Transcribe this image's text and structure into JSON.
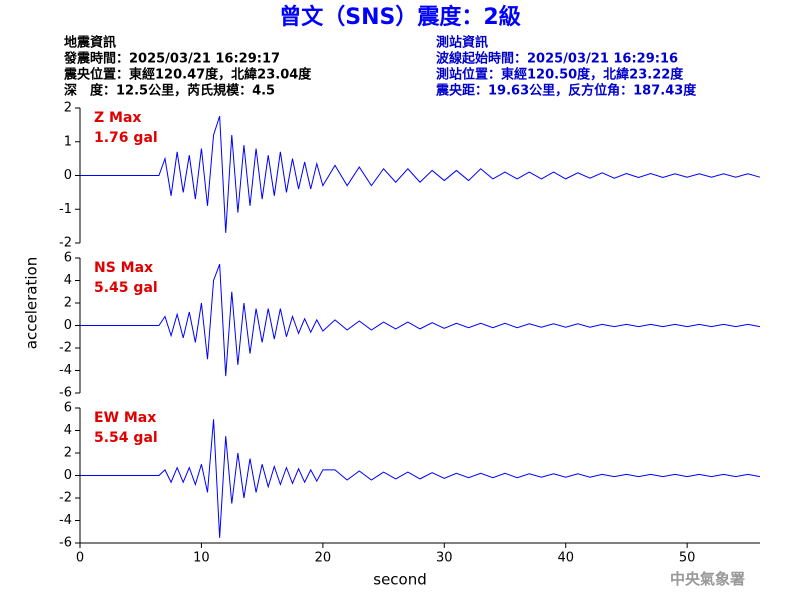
{
  "header": {
    "title": "曾文（SNS）震度：2級",
    "left": [
      "地震資訊",
      "發震時間：2025/03/21 16:29:17",
      "震央位置：東經120.47度，北緯23.04度",
      "深　度：12.5公里，芮氏規模：4.5"
    ],
    "right": [
      "測站資訊",
      "波線起始時間：2025/03/21 16:29:16",
      "測站位置：東經120.50度，北緯23.22度",
      "震央距：19.63公里，反方位角：187.43度"
    ],
    "xlabel": "second",
    "ylabel": "acceleration",
    "footer": "中央氣象署"
  },
  "chart_data": [
    {
      "type": "line",
      "annotation": "Z Max",
      "max_label": "1.76 gal",
      "xlim": [
        0,
        56
      ],
      "ylim": [
        -2,
        2
      ],
      "yticks": [
        -2,
        -1,
        0,
        1,
        2
      ],
      "x": [
        0,
        6,
        6.5,
        7,
        7.5,
        8,
        8.5,
        9,
        9.5,
        10,
        10.5,
        11,
        11.5,
        12,
        12.5,
        13,
        13.5,
        14,
        14.5,
        15,
        15.5,
        16,
        16.5,
        17,
        17.5,
        18,
        18.5,
        19,
        19.5,
        20,
        21,
        22,
        23,
        24,
        25,
        26,
        27,
        28,
        29,
        30,
        31,
        32,
        33,
        34,
        35,
        36,
        37,
        38,
        39,
        40,
        41,
        42,
        43,
        44,
        45,
        46,
        47,
        48,
        49,
        50,
        51,
        52,
        53,
        54,
        55,
        56
      ],
      "series": [
        {
          "color": "#0000ff",
          "values": [
            0,
            0,
            0,
            0.5,
            -0.6,
            0.7,
            -0.5,
            0.6,
            -0.7,
            0.8,
            -0.9,
            1.2,
            1.76,
            -1.7,
            1.2,
            -1.1,
            0.9,
            -0.9,
            0.8,
            -0.7,
            0.6,
            -0.6,
            0.7,
            -0.5,
            0.5,
            -0.4,
            0.4,
            -0.4,
            0.35,
            -0.3,
            0.3,
            -0.3,
            0.25,
            -0.3,
            0.2,
            -0.2,
            0.2,
            -0.2,
            0.15,
            -0.15,
            0.15,
            -0.15,
            0.2,
            -0.1,
            0.1,
            -0.1,
            0.1,
            -0.1,
            0.1,
            -0.1,
            0.08,
            -0.08,
            0.08,
            -0.08,
            0.06,
            -0.06,
            0.06,
            -0.06,
            0.05,
            -0.05,
            0.05,
            -0.05,
            0.05,
            -0.05,
            0.05,
            -0.05
          ]
        }
      ]
    },
    {
      "type": "line",
      "annotation": "NS Max",
      "max_label": "5.45 gal",
      "xlim": [
        0,
        56
      ],
      "ylim": [
        -6,
        6
      ],
      "yticks": [
        -6,
        -4,
        -2,
        0,
        2,
        4,
        6
      ],
      "x": [
        0,
        6,
        6.5,
        7,
        7.5,
        8,
        8.5,
        9,
        9.5,
        10,
        10.5,
        11,
        11.5,
        12,
        12.5,
        13,
        13.5,
        14,
        14.5,
        15,
        15.5,
        16,
        16.5,
        17,
        17.5,
        18,
        18.5,
        19,
        19.5,
        20,
        21,
        22,
        23,
        24,
        25,
        26,
        27,
        28,
        29,
        30,
        31,
        32,
        33,
        34,
        35,
        36,
        37,
        38,
        39,
        40,
        41,
        42,
        43,
        44,
        45,
        46,
        47,
        48,
        49,
        50,
        51,
        52,
        53,
        54,
        55,
        56
      ],
      "series": [
        {
          "color": "#0000ff",
          "values": [
            0,
            0,
            0,
            0.8,
            -0.9,
            1,
            -1.1,
            1.2,
            -1.5,
            2,
            -3,
            4,
            5.45,
            -4.5,
            3,
            -3.5,
            2,
            -2.5,
            1.5,
            -1.5,
            1.5,
            -1.2,
            1.5,
            -1,
            0.8,
            -0.7,
            0.6,
            -0.6,
            0.5,
            -0.5,
            0.5,
            -0.4,
            0.4,
            -0.4,
            0.3,
            -0.3,
            0.3,
            -0.3,
            0.25,
            -0.25,
            0.2,
            -0.2,
            0.2,
            -0.2,
            0.2,
            -0.2,
            0.15,
            -0.15,
            0.15,
            -0.15,
            0.15,
            -0.15,
            0.1,
            -0.1,
            0.1,
            -0.1,
            0.1,
            -0.1,
            0.1,
            -0.1,
            0.1,
            -0.1,
            0.1,
            -0.1,
            0.1,
            -0.1
          ]
        }
      ]
    },
    {
      "type": "line",
      "annotation": "EW Max",
      "max_label": "5.54 gal",
      "xlim": [
        0,
        56
      ],
      "ylim": [
        -6,
        6
      ],
      "yticks": [
        -6,
        -4,
        -2,
        0,
        2,
        4,
        6
      ],
      "xticks": [
        0,
        10,
        20,
        30,
        40,
        50
      ],
      "x": [
        0,
        6,
        6.5,
        7,
        7.5,
        8,
        8.5,
        9,
        9.5,
        10,
        10.5,
        11,
        11.5,
        12,
        12.5,
        13,
        13.5,
        14,
        14.5,
        15,
        15.5,
        16,
        16.5,
        17,
        17.5,
        18,
        18.5,
        19,
        19.5,
        20,
        21,
        22,
        23,
        24,
        25,
        26,
        27,
        28,
        29,
        30,
        31,
        32,
        33,
        34,
        35,
        36,
        37,
        38,
        39,
        40,
        41,
        42,
        43,
        44,
        45,
        46,
        47,
        48,
        49,
        50,
        51,
        52,
        53,
        54,
        55,
        56
      ],
      "series": [
        {
          "color": "#0000ff",
          "values": [
            0,
            0,
            0,
            0.5,
            -0.6,
            0.7,
            -0.6,
            0.7,
            -0.8,
            1,
            -1.5,
            5,
            -5.54,
            3.5,
            -2.5,
            2,
            -2,
            1.5,
            -1.5,
            1,
            -1,
            0.8,
            -0.8,
            0.7,
            -0.7,
            0.6,
            -0.6,
            0.5,
            -0.5,
            0.5,
            0.5,
            -0.4,
            0.4,
            -0.4,
            0.3,
            -0.3,
            0.3,
            -0.3,
            0.25,
            -0.25,
            0.2,
            -0.2,
            0.2,
            -0.2,
            0.2,
            -0.2,
            0.15,
            -0.15,
            0.15,
            -0.15,
            0.15,
            -0.15,
            0.1,
            -0.1,
            0.1,
            -0.1,
            0.1,
            -0.1,
            0.1,
            -0.1,
            0.1,
            -0.1,
            0.1,
            -0.1,
            0.1,
            -0.1
          ]
        }
      ]
    }
  ]
}
